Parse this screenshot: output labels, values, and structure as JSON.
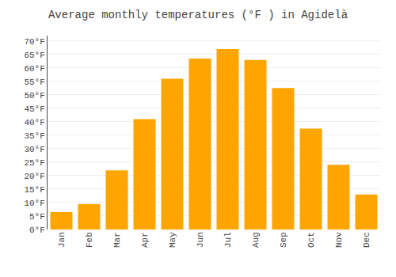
{
  "chart_data": {
    "type": "bar",
    "title": "Average monthly temperatures (°F ) in Agidelà",
    "categories": [
      "Jan",
      "Feb",
      "Mar",
      "Apr",
      "May",
      "Jun",
      "Jul",
      "Aug",
      "Sep",
      "Oct",
      "Nov",
      "Dec"
    ],
    "values": [
      6.5,
      9.5,
      22,
      41,
      56,
      63.5,
      67,
      63,
      52.5,
      37.5,
      24,
      13
    ],
    "color": "#FFA500",
    "ylim": [
      0,
      72
    ],
    "yticks": [
      {
        "value": 0,
        "label": "0°F"
      },
      {
        "value": 5,
        "label": "5°F"
      },
      {
        "value": 10,
        "label": "10°F"
      },
      {
        "value": 15,
        "label": "15°F"
      },
      {
        "value": 20,
        "label": "20°F"
      },
      {
        "value": 25,
        "label": "25°F"
      },
      {
        "value": 30,
        "label": "30°F"
      },
      {
        "value": 35,
        "label": "35°F"
      },
      {
        "value": 40,
        "label": "40°F"
      },
      {
        "value": 45,
        "label": "45°F"
      },
      {
        "value": 50,
        "label": "50°F"
      },
      {
        "value": 55,
        "label": "55°F"
      },
      {
        "value": 60,
        "label": "60°F"
      },
      {
        "value": 65,
        "label": "65°F"
      },
      {
        "value": 70,
        "label": "70°F"
      }
    ],
    "grid": true
  }
}
